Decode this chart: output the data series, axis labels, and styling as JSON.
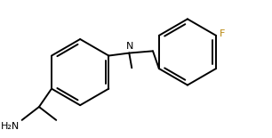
{
  "background": "#ffffff",
  "line_color": "#000000",
  "line_width": 1.4,
  "font_size_label": 8.0,
  "N_label": "N",
  "F_label": "F",
  "H2N_label": "H₂N",
  "F_color": "#b8860b",
  "lc": "#000000"
}
